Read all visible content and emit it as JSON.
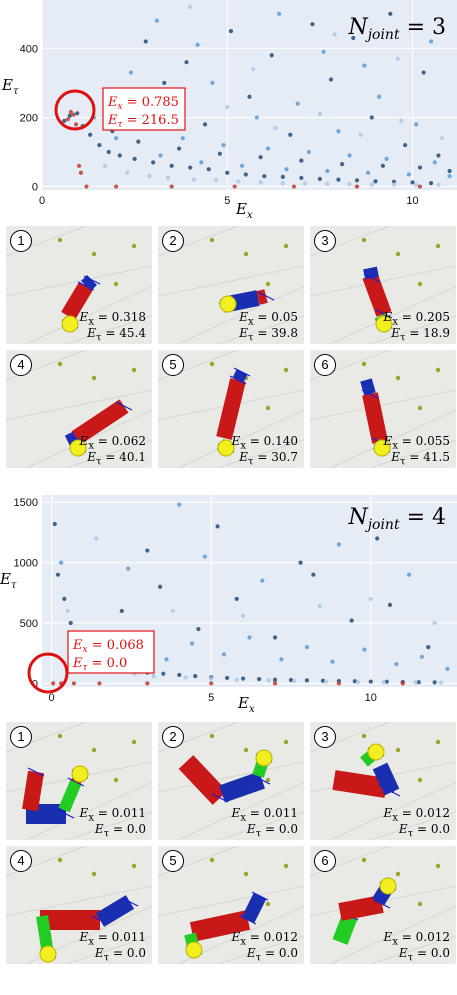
{
  "chart_data": [
    {
      "type": "scatter",
      "title": "N_joint = 3",
      "title_parts": {
        "n": "N",
        "sub": "joint",
        "rest": " = 3"
      },
      "xlabel": "E_x",
      "ylabel": "E_τ",
      "xlabel_parts": {
        "main": "E",
        "sub": "x"
      },
      "ylabel_parts": {
        "main": "E",
        "sub": "τ"
      },
      "xlim": [
        0,
        11.2
      ],
      "ylim": [
        -10,
        540
      ],
      "x_ticks": [
        0,
        5,
        10
      ],
      "y_ticks": [
        0,
        200,
        400
      ],
      "grid": true,
      "highlight": {
        "x": 0.785,
        "y": 216.5,
        "label_ex": "E_x = 0.785",
        "label_et": "E_τ = 216.5",
        "ex_main": "E",
        "ex_sub": "x",
        "ex_val": " = 0.785",
        "et_main": "E",
        "et_sub": "τ",
        "et_val": " = 216.5"
      },
      "series": [
        {
          "color": "#1f4e79",
          "points": [
            [
              0.6,
              190
            ],
            [
              0.75,
              205
            ],
            [
              0.95,
              212
            ],
            [
              1.1,
              175
            ],
            [
              1.3,
              150
            ],
            [
              1.55,
              120
            ],
            [
              1.8,
              100
            ],
            [
              2.1,
              90
            ],
            [
              2.5,
              80
            ],
            [
              3.0,
              70
            ],
            [
              3.5,
              60
            ],
            [
              4.0,
              55
            ],
            [
              4.5,
              50
            ],
            [
              5.0,
              40
            ],
            [
              5.5,
              35
            ],
            [
              6.0,
              30
            ],
            [
              6.5,
              28
            ],
            [
              7.0,
              25
            ],
            [
              7.5,
              22
            ],
            [
              8.0,
              20
            ],
            [
              8.5,
              18
            ],
            [
              9.0,
              15
            ],
            [
              9.5,
              14
            ],
            [
              10.0,
              12
            ],
            [
              10.5,
              10
            ],
            [
              2.2,
              240
            ],
            [
              3.3,
              300
            ],
            [
              4.4,
              180
            ],
            [
              5.6,
              260
            ],
            [
              6.7,
              150
            ],
            [
              7.8,
              310
            ],
            [
              8.9,
              200
            ],
            [
              9.8,
              120
            ],
            [
              10.7,
              90
            ],
            [
              2.8,
              420
            ],
            [
              3.9,
              360
            ],
            [
              5.1,
              450
            ],
            [
              6.2,
              380
            ],
            [
              7.3,
              470
            ],
            [
              8.4,
              430
            ],
            [
              9.4,
              500
            ],
            [
              10.3,
              330
            ],
            [
              1.9,
              160
            ],
            [
              2.6,
              130
            ],
            [
              3.7,
              110
            ],
            [
              4.8,
              95
            ],
            [
              5.9,
              85
            ],
            [
              7.0,
              75
            ],
            [
              8.1,
              65
            ],
            [
              9.2,
              60
            ],
            [
              10.2,
              55
            ],
            [
              11.0,
              45
            ]
          ]
        },
        {
          "color": "#5b9bd5",
          "points": [
            [
              1.4,
              200
            ],
            [
              2.0,
              140
            ],
            [
              2.7,
              170
            ],
            [
              3.2,
              90
            ],
            [
              3.8,
              140
            ],
            [
              4.3,
              70
            ],
            [
              4.9,
              120
            ],
            [
              5.4,
              60
            ],
            [
              6.1,
              110
            ],
            [
              6.6,
              50
            ],
            [
              7.2,
              100
            ],
            [
              7.7,
              45
            ],
            [
              8.3,
              90
            ],
            [
              8.8,
              40
            ],
            [
              9.3,
              80
            ],
            [
              9.9,
              35
            ],
            [
              10.6,
              70
            ],
            [
              11.0,
              30
            ],
            [
              2.4,
              330
            ],
            [
              3.6,
              260
            ],
            [
              4.6,
              300
            ],
            [
              5.8,
              200
            ],
            [
              6.9,
              240
            ],
            [
              8.0,
              160
            ],
            [
              9.1,
              260
            ],
            [
              10.1,
              180
            ],
            [
              3.1,
              480
            ],
            [
              4.2,
              410
            ],
            [
              6.4,
              500
            ],
            [
              7.6,
              390
            ],
            [
              8.7,
              350
            ],
            [
              10.5,
              420
            ]
          ]
        },
        {
          "color": "#a9c8e8",
          "points": [
            [
              1.7,
              60
            ],
            [
              2.3,
              40
            ],
            [
              2.9,
              30
            ],
            [
              3.4,
              25
            ],
            [
              4.1,
              20
            ],
            [
              4.7,
              18
            ],
            [
              5.3,
              15
            ],
            [
              5.9,
              12
            ],
            [
              6.5,
              10
            ],
            [
              7.1,
              9
            ],
            [
              7.7,
              8
            ],
            [
              8.3,
              7
            ],
            [
              8.9,
              6
            ],
            [
              9.5,
              6
            ],
            [
              10.1,
              5
            ],
            [
              10.7,
              5
            ],
            [
              2.6,
              210
            ],
            [
              3.8,
              190
            ],
            [
              5.0,
              230
            ],
            [
              6.3,
              170
            ],
            [
              7.5,
              210
            ],
            [
              8.6,
              150
            ],
            [
              9.7,
              190
            ],
            [
              10.8,
              140
            ],
            [
              4.0,
              520
            ],
            [
              5.7,
              340
            ],
            [
              7.9,
              440
            ],
            [
              9.6,
              370
            ]
          ]
        },
        {
          "color": "#c0392b",
          "points": [
            [
              0.7,
              195
            ],
            [
              0.78,
              216
            ],
            [
              0.85,
              208
            ],
            [
              0.92,
              180
            ],
            [
              1.0,
              60
            ],
            [
              1.05,
              40
            ],
            [
              1.2,
              0
            ],
            [
              2.0,
              0
            ],
            [
              3.5,
              0
            ],
            [
              5.2,
              0
            ],
            [
              6.8,
              0
            ],
            [
              8.5,
              0
            ],
            [
              10.2,
              0
            ]
          ]
        }
      ]
    },
    {
      "type": "scatter",
      "title": "N_joint = 4",
      "title_parts": {
        "n": "N",
        "sub": "joint",
        "rest": " = 4"
      },
      "xlabel": "E_x",
      "ylabel": "E_τ",
      "xlabel_parts": {
        "main": "E",
        "sub": "x"
      },
      "ylabel_parts": {
        "main": "E",
        "sub": "τ"
      },
      "xlim": [
        -0.3,
        12.7
      ],
      "ylim": [
        -30,
        1560
      ],
      "x_ticks": [
        0,
        5,
        10
      ],
      "y_ticks": [
        0,
        500,
        1000,
        1500
      ],
      "grid": true,
      "highlight": {
        "x": 0.068,
        "y": 0.0,
        "label_ex": "E_x = 0.068",
        "label_et": "E_τ = 0.0",
        "ex_main": "E",
        "ex_sub": "x",
        "ex_val": " = 0.068",
        "et_main": "E",
        "et_sub": "τ",
        "et_val": " = 0.0"
      },
      "series": [
        {
          "color": "#1f4e79",
          "points": [
            [
              0.1,
              1320
            ],
            [
              0.2,
              900
            ],
            [
              0.4,
              700
            ],
            [
              0.6,
              500
            ],
            [
              0.8,
              350
            ],
            [
              1.0,
              250
            ],
            [
              1.5,
              180
            ],
            [
              2.0,
              140
            ],
            [
              2.5,
              110
            ],
            [
              3.0,
              90
            ],
            [
              3.5,
              80
            ],
            [
              4.0,
              70
            ],
            [
              4.5,
              60
            ],
            [
              5.0,
              50
            ],
            [
              5.5,
              45
            ],
            [
              6.0,
              40
            ],
            [
              6.5,
              35
            ],
            [
              7.0,
              30
            ],
            [
              7.5,
              28
            ],
            [
              8.0,
              25
            ],
            [
              8.5,
              22
            ],
            [
              9.0,
              20
            ],
            [
              9.5,
              18
            ],
            [
              10.0,
              15
            ],
            [
              10.5,
              14
            ],
            [
              11.0,
              12
            ],
            [
              11.5,
              10
            ],
            [
              12.0,
              8
            ],
            [
              2.2,
              600
            ],
            [
              3.4,
              800
            ],
            [
              4.6,
              450
            ],
            [
              5.8,
              700
            ],
            [
              7.0,
              380
            ],
            [
              8.2,
              900
            ],
            [
              9.4,
              520
            ],
            [
              10.6,
              650
            ],
            [
              11.8,
              300
            ],
            [
              3.0,
              1100
            ],
            [
              5.2,
              1300
            ],
            [
              7.8,
              1000
            ],
            [
              10.2,
              1200
            ]
          ]
        },
        {
          "color": "#5b9bd5",
          "points": [
            [
              0.3,
              1000
            ],
            [
              1.2,
              420
            ],
            [
              1.8,
              300
            ],
            [
              2.8,
              260
            ],
            [
              3.6,
              200
            ],
            [
              4.4,
              330
            ],
            [
              5.4,
              240
            ],
            [
              6.2,
              380
            ],
            [
              7.2,
              200
            ],
            [
              8.0,
              300
            ],
            [
              8.8,
              180
            ],
            [
              9.8,
              280
            ],
            [
              10.8,
              160
            ],
            [
              11.6,
              220
            ],
            [
              12.4,
              120
            ],
            [
              2.4,
              950
            ],
            [
              4.8,
              1050
            ],
            [
              6.6,
              850
            ],
            [
              9.0,
              1150
            ],
            [
              11.2,
              900
            ],
            [
              4.0,
              1480
            ]
          ]
        },
        {
          "color": "#a9c8e8",
          "points": [
            [
              0.5,
              600
            ],
            [
              1.6,
              100
            ],
            [
              2.6,
              80
            ],
            [
              3.2,
              60
            ],
            [
              4.2,
              50
            ],
            [
              5.0,
              40
            ],
            [
              5.8,
              30
            ],
            [
              6.8,
              25
            ],
            [
              7.6,
              20
            ],
            [
              8.6,
              15
            ],
            [
              9.6,
              12
            ],
            [
              10.4,
              10
            ],
            [
              11.4,
              8
            ],
            [
              12.2,
              6
            ],
            [
              1.4,
              1200
            ],
            [
              3.8,
              600
            ],
            [
              6.0,
              560
            ],
            [
              8.4,
              640
            ],
            [
              10.0,
              700
            ],
            [
              12.0,
              500
            ]
          ]
        },
        {
          "color": "#c0392b",
          "points": [
            [
              0.05,
              0
            ],
            [
              0.3,
              0
            ],
            [
              0.7,
              0
            ],
            [
              1.5,
              0
            ],
            [
              3.0,
              0
            ],
            [
              5.0,
              0
            ],
            [
              7.0,
              0
            ],
            [
              9.0,
              0
            ],
            [
              11.0,
              0
            ]
          ]
        }
      ]
    }
  ],
  "panels_a": [
    {
      "num": "1",
      "ex": "0.318",
      "et": "45.4"
    },
    {
      "num": "2",
      "ex": "0.05",
      "et": "39.8"
    },
    {
      "num": "3",
      "ex": "0.205",
      "et": "18.9"
    },
    {
      "num": "4",
      "ex": "0.062",
      "et": "40.1"
    },
    {
      "num": "5",
      "ex": "0.140",
      "et": "30.7"
    },
    {
      "num": "6",
      "ex": "0.055",
      "et": "41.5"
    }
  ],
  "panels_b": [
    {
      "num": "1",
      "ex": "0.011",
      "et": "0.0"
    },
    {
      "num": "2",
      "ex": "0.011",
      "et": "0.0"
    },
    {
      "num": "3",
      "ex": "0.012",
      "et": "0.0"
    },
    {
      "num": "4",
      "ex": "0.011",
      "et": "0.0"
    },
    {
      "num": "5",
      "ex": "0.012",
      "et": "0.0"
    },
    {
      "num": "6",
      "ex": "0.012",
      "et": "0.0"
    }
  ],
  "panel_label_parts": {
    "main": "E",
    "x_sub": "x",
    "t_sub": "τ",
    "eq": " = "
  },
  "colors": {
    "plot_bg": "#e6ecf6",
    "highlight": "#e01010",
    "panel_bg": "#e9e9e6",
    "link_red": "#c81818",
    "link_blue": "#1a2fb0",
    "link_green": "#22cc22",
    "ball": "#f2ee20"
  }
}
